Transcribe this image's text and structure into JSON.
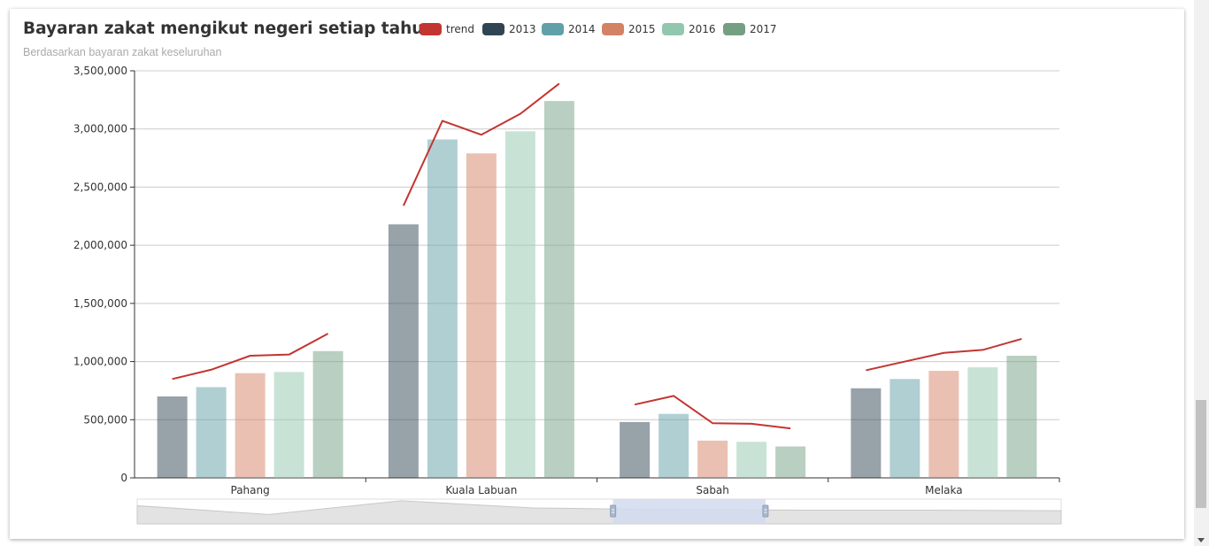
{
  "colors": {
    "trend": "#c23531",
    "2013": "#2f4554",
    "2014": "#61a0a8",
    "2015": "#d48265",
    "2016": "#91c7ae",
    "2017": "#749f83",
    "axis": "#333333",
    "grid": "#cccccc",
    "zoom_fill": "#d2dbee"
  },
  "chart_data": {
    "type": "bar",
    "title": "Bayaran zakat mengikut negeri setiap tahun",
    "subtitle": "Berdasarkan bayaran zakat keseluruhan",
    "categories": [
      "Pahang",
      "Kuala Labuan",
      "Sabah",
      "Melaka"
    ],
    "ylim": [
      0,
      3500000
    ],
    "y_ticks": [
      "0",
      "500,000",
      "1,000,000",
      "1,500,000",
      "2,000,000",
      "2,500,000",
      "3,000,000",
      "3,500,000"
    ],
    "grid": true,
    "legend_position": "top",
    "legend": [
      "trend",
      "2013",
      "2014",
      "2015",
      "2016",
      "2017"
    ],
    "series": [
      {
        "name": "2013",
        "values": [
          700000,
          2180000,
          480000,
          770000
        ]
      },
      {
        "name": "2014",
        "values": [
          780000,
          2910000,
          550000,
          850000
        ]
      },
      {
        "name": "2015",
        "values": [
          900000,
          2790000,
          320000,
          920000
        ]
      },
      {
        "name": "2016",
        "values": [
          910000,
          2980000,
          310000,
          950000
        ]
      },
      {
        "name": "2017",
        "values": [
          1090000,
          3240000,
          270000,
          1050000
        ]
      }
    ],
    "trend": {
      "name": "trend",
      "type": "line",
      "values": [
        [
          850000,
          930000,
          1050000,
          1060000,
          1240000
        ],
        [
          2340000,
          3070000,
          2950000,
          3130000,
          3390000
        ],
        [
          630000,
          705000,
          470000,
          465000,
          425000
        ],
        [
          925000,
          1000000,
          1075000,
          1100000,
          1195000
        ]
      ]
    },
    "data_zoom": {
      "start_fraction": 0.515,
      "end_fraction": 0.68,
      "preview": [
        3300000,
        1700000,
        4200000,
        2900000,
        2600000,
        2500000,
        2500000,
        2400000
      ]
    }
  }
}
